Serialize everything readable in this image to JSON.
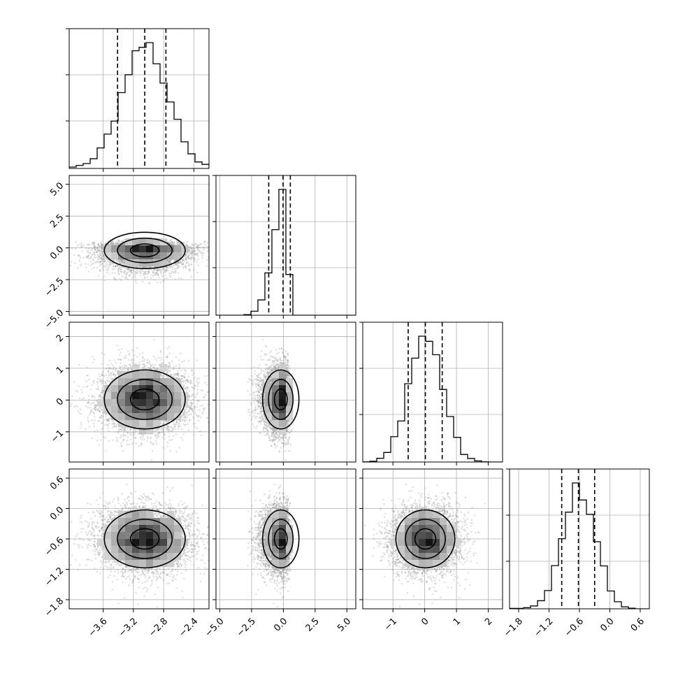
{
  "chart_data": {
    "type": "corner",
    "title": "",
    "parameters": [
      {
        "label": "",
        "range": [
          -4.05,
          -2.2
        ],
        "ticks": [
          -3.6,
          -3.2,
          -2.8,
          -2.4
        ],
        "tick_labels": [
          "−3.6",
          "−3.2",
          "−2.8",
          "−2.4"
        ],
        "quantiles": [
          -3.41,
          -3.05,
          -2.77
        ],
        "mean": -3.05,
        "sd": 0.3
      },
      {
        "label": "",
        "range": [
          -5.3,
          5.7
        ],
        "ticks": [
          -5.0,
          -2.5,
          0.0,
          2.5,
          5.0
        ],
        "tick_labels": [
          "−5.0",
          "−2.5",
          "0.0",
          "2.5",
          "5.0"
        ],
        "quantiles": [
          -1.15,
          -0.02,
          0.55
        ],
        "mean": 0.0,
        "sd": 1.0
      },
      {
        "label": "",
        "range": [
          -1.95,
          2.45
        ],
        "ticks": [
          -1,
          0,
          1,
          2
        ],
        "tick_labels": [
          "−1",
          "0",
          "1",
          "2"
        ],
        "quantiles": [
          -0.52,
          0.02,
          0.55
        ],
        "mean": 0.02,
        "sd": 0.52
      },
      {
        "label": "",
        "range": [
          -1.98,
          0.78
        ],
        "ticks": [
          -1.8,
          -1.2,
          -0.6,
          0.0,
          0.6
        ],
        "tick_labels": [
          "−1.8",
          "−1.2",
          "−0.6",
          "0.0",
          "0.6"
        ],
        "quantiles": [
          -0.95,
          -0.62,
          -0.3
        ],
        "mean": -0.6,
        "sd": 0.32
      }
    ],
    "y_tick_labels": {
      "row1": {
        "ticks": [
          -5.0,
          -2.5,
          0.0,
          2.5,
          5.0
        ],
        "labels": [
          "−5.0",
          "−2.5",
          "0.0",
          "2.5",
          "5.0"
        ]
      },
      "row2": {
        "ticks": [
          -1,
          0,
          1,
          2
        ],
        "labels": [
          "−1",
          "0",
          "1",
          "2"
        ]
      },
      "row3": {
        "ticks": [
          -1.8,
          -1.2,
          -0.6,
          0.0,
          0.6
        ],
        "labels": [
          "−1.8",
          "−1.2",
          "−0.6",
          "0.0",
          "0.6"
        ]
      }
    },
    "grid": true,
    "contour_levels": [
      "1-sigma",
      "1.5-sigma",
      "2-sigma"
    ],
    "colors": {
      "hist": "#000000",
      "points": "#9a9a9a",
      "grid": "#b0b0b0"
    }
  }
}
